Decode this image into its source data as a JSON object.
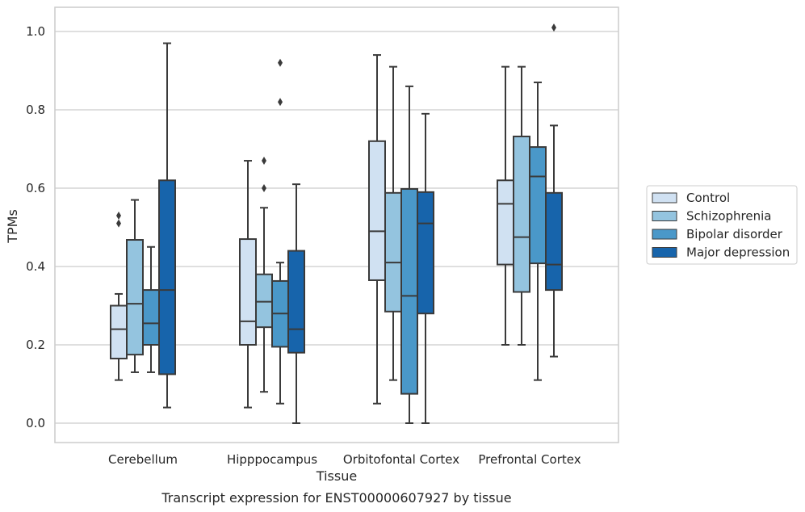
{
  "chart_data": {
    "type": "boxplot",
    "xlabel": "Tissue",
    "ylabel": "TPMs",
    "caption": "Transcript expression for ENST00000607927 by tissue",
    "ylim": [
      -0.05,
      1.06
    ],
    "yticks": [
      "0.0",
      "0.2",
      "0.4",
      "0.6",
      "0.8",
      "1.0"
    ],
    "grid": "horizontal",
    "legend_position": "right",
    "categories": [
      "Cerebellum",
      "Hipppocampus",
      "Orbitofontal Cortex",
      "Prefrontal Cortex"
    ],
    "series": [
      {
        "name": "Control",
        "color": "#d0e1f2",
        "boxes": [
          {
            "whislo": 0.11,
            "q1": 0.165,
            "med": 0.24,
            "q3": 0.3,
            "whishi": 0.33,
            "fliers": [
              0.51,
              0.53
            ]
          },
          {
            "whislo": 0.04,
            "q1": 0.2,
            "med": 0.26,
            "q3": 0.47,
            "whishi": 0.67,
            "fliers": []
          },
          {
            "whislo": 0.05,
            "q1": 0.365,
            "med": 0.49,
            "q3": 0.72,
            "whishi": 0.94,
            "fliers": []
          },
          {
            "whislo": 0.2,
            "q1": 0.405,
            "med": 0.56,
            "q3": 0.62,
            "whishi": 0.91,
            "fliers": []
          }
        ]
      },
      {
        "name": "Schizophrenia",
        "color": "#94c4df",
        "boxes": [
          {
            "whislo": 0.13,
            "q1": 0.175,
            "med": 0.305,
            "q3": 0.468,
            "whishi": 0.57,
            "fliers": []
          },
          {
            "whislo": 0.08,
            "q1": 0.245,
            "med": 0.31,
            "q3": 0.38,
            "whishi": 0.55,
            "fliers": [
              0.6,
              0.67
            ]
          },
          {
            "whislo": 0.11,
            "q1": 0.285,
            "med": 0.41,
            "q3": 0.588,
            "whishi": 0.91,
            "fliers": []
          },
          {
            "whislo": 0.2,
            "q1": 0.335,
            "med": 0.475,
            "q3": 0.732,
            "whishi": 0.91,
            "fliers": []
          }
        ]
      },
      {
        "name": "Bipolar disorder",
        "color": "#4a98c9",
        "boxes": [
          {
            "whislo": 0.13,
            "q1": 0.2,
            "med": 0.255,
            "q3": 0.34,
            "whishi": 0.45,
            "fliers": []
          },
          {
            "whislo": 0.05,
            "q1": 0.195,
            "med": 0.28,
            "q3": 0.363,
            "whishi": 0.41,
            "fliers": [
              0.82,
              0.92
            ]
          },
          {
            "whislo": 0.0,
            "q1": 0.075,
            "med": 0.325,
            "q3": 0.598,
            "whishi": 0.86,
            "fliers": []
          },
          {
            "whislo": 0.11,
            "q1": 0.408,
            "med": 0.63,
            "q3": 0.705,
            "whishi": 0.87,
            "fliers": []
          }
        ]
      },
      {
        "name": "Major depression",
        "color": "#1764ab",
        "boxes": [
          {
            "whislo": 0.04,
            "q1": 0.125,
            "med": 0.34,
            "q3": 0.62,
            "whishi": 0.97,
            "fliers": []
          },
          {
            "whislo": 0.0,
            "q1": 0.18,
            "med": 0.24,
            "q3": 0.44,
            "whishi": 0.61,
            "fliers": []
          },
          {
            "whislo": 0.0,
            "q1": 0.28,
            "med": 0.51,
            "q3": 0.59,
            "whishi": 0.79,
            "fliers": []
          },
          {
            "whislo": 0.17,
            "q1": 0.34,
            "med": 0.405,
            "q3": 0.588,
            "whishi": 0.76,
            "fliers": [
              1.01
            ]
          }
        ]
      }
    ]
  }
}
